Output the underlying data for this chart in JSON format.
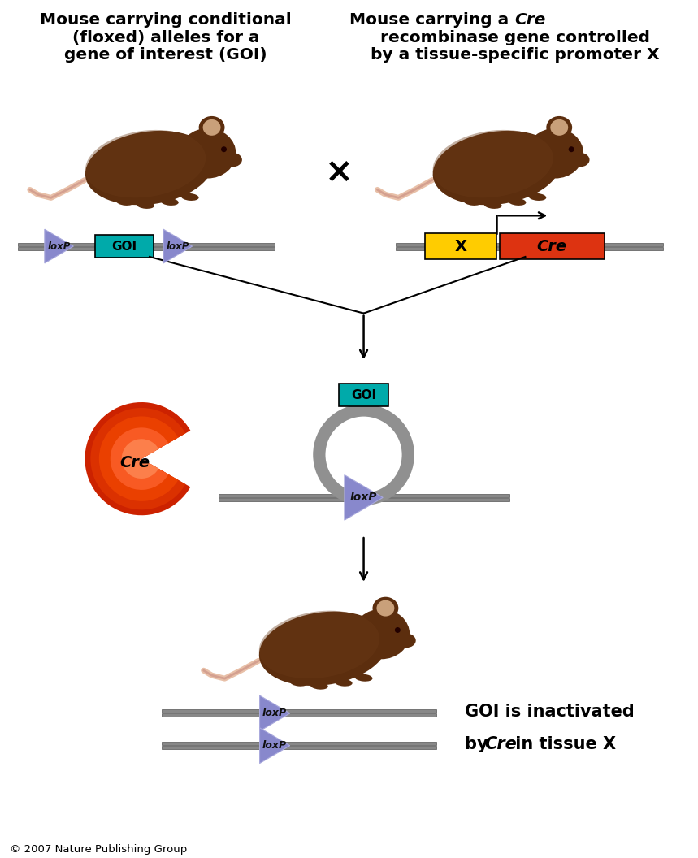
{
  "bg_color": "#ffffff",
  "loxp_color": "#8888cc",
  "goi_color": "#00aaaa",
  "x_promoter_color": "#ffcc00",
  "cre_gene_color": "#dd3311",
  "dna_bar_color": "#888888",
  "text_color": "#000000",
  "title_left_line1": "Mouse carrying conditional",
  "title_left_line2": "(floxed) alleles for a",
  "title_left_line3": "gene of interest (GOI)",
  "title_right_line1_a": "Mouse carrying a ",
  "title_right_line1_b": "Cre",
  "title_right_line2": "recombinase gene controlled",
  "title_right_line3": "by a tissue-specific promoter X",
  "copyright": "© 2007 Nature Publishing Group",
  "final_line1": "GOI is inactivated",
  "final_line2a": "by ",
  "final_line2b": "Cre",
  "final_line2c": " in tissue X",
  "mouse_body_color": "#5c2e0e",
  "mouse_body_color2": "#4a2008",
  "mouse_fur_color": "#6b3a18",
  "mouse_ear_color": "#c9a07a",
  "mouse_tail_color": "#e8c0a8",
  "mouse_feet_color": "#8b5a3a",
  "cre_color_outer": "#ff2200",
  "cre_color_inner": "#ff8844",
  "loop_color": "#909090"
}
